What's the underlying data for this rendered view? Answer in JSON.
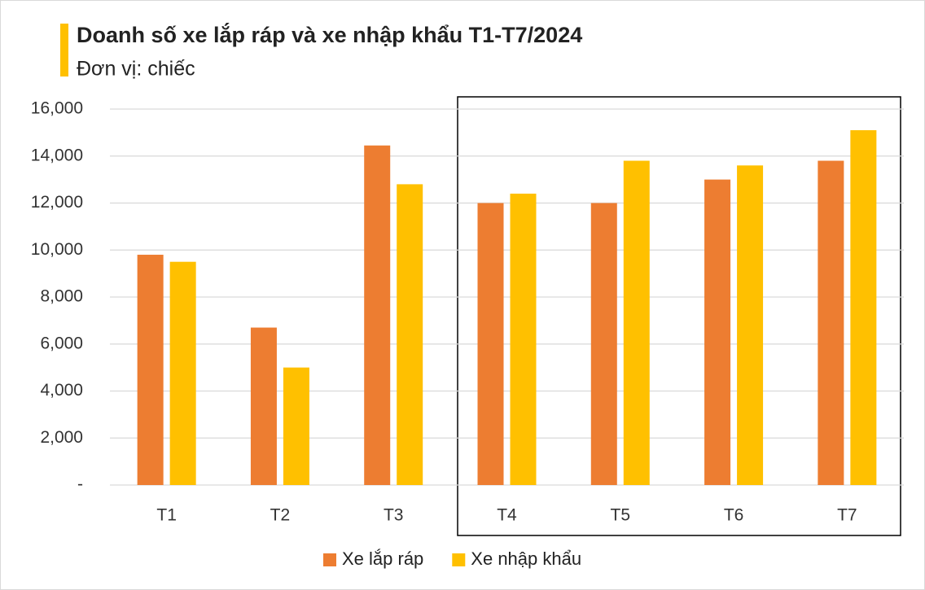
{
  "chart_data": {
    "type": "bar",
    "title": "Doanh số xe lắp ráp và xe nhập khẩu T1-T7/2024",
    "subtitle": "Đơn vị: chiếc",
    "categories": [
      "T1",
      "T2",
      "T3",
      "T4",
      "T5",
      "T6",
      "T7"
    ],
    "series": [
      {
        "name": "Xe lắp ráp",
        "color": "#ed7d31",
        "values": [
          9800,
          6700,
          14450,
          12000,
          12000,
          13000,
          13800
        ]
      },
      {
        "name": "Xe nhập khẩu",
        "color": "#ffc000",
        "values": [
          9500,
          5000,
          12800,
          12400,
          13800,
          13600,
          15100
        ]
      }
    ],
    "ylim": [
      0,
      16000
    ],
    "yticks": [
      {
        "value": 0,
        "label": "-"
      },
      {
        "value": 2000,
        "label": "2,000"
      },
      {
        "value": 4000,
        "label": "4,000"
      },
      {
        "value": 6000,
        "label": "6,000"
      },
      {
        "value": 8000,
        "label": "8,000"
      },
      {
        "value": 10000,
        "label": "10,000"
      },
      {
        "value": 12000,
        "label": "12,000"
      },
      {
        "value": 14000,
        "label": "14,000"
      },
      {
        "value": 16000,
        "label": "16,000"
      }
    ],
    "grid": true,
    "legend": "bottom"
  }
}
